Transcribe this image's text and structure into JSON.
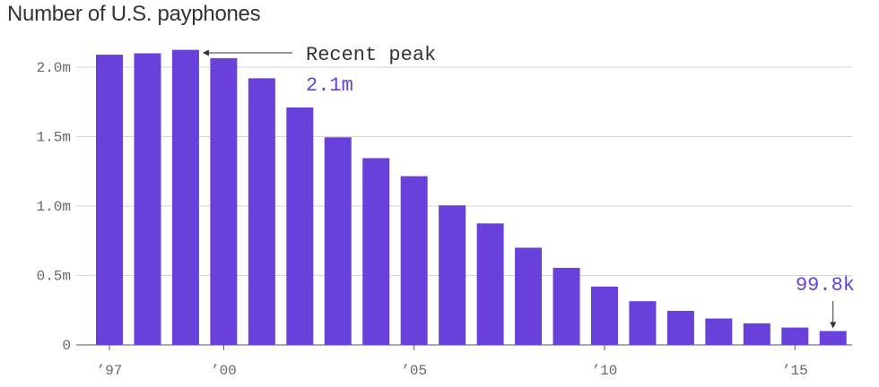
{
  "chart_data": {
    "type": "bar",
    "title": "Number of U.S. payphones",
    "xlabel": "",
    "ylabel": "",
    "categories": [
      "1997",
      "1998",
      "1999",
      "2000",
      "2001",
      "2002",
      "2003",
      "2004",
      "2005",
      "2006",
      "2007",
      "2008",
      "2009",
      "2010",
      "2011",
      "2012",
      "2013",
      "2014",
      "2015",
      "2016"
    ],
    "values": [
      2.09,
      2.1,
      2.125,
      2.065,
      1.92,
      1.71,
      1.495,
      1.345,
      1.215,
      1.005,
      0.875,
      0.7,
      0.555,
      0.42,
      0.315,
      0.245,
      0.19,
      0.155,
      0.125,
      0.0998
    ],
    "unit": "millions",
    "ylim": [
      0,
      2.2
    ],
    "yticks": [
      {
        "value": 0,
        "label": "0"
      },
      {
        "value": 0.5,
        "label": "0.5m"
      },
      {
        "value": 1.0,
        "label": "1.0m"
      },
      {
        "value": 1.5,
        "label": "1.5m"
      },
      {
        "value": 2.0,
        "label": "2.0m"
      }
    ],
    "xticks": [
      {
        "category": "1997",
        "label": "’97"
      },
      {
        "category": "2000",
        "label": "’00"
      },
      {
        "category": "2005",
        "label": "’05"
      },
      {
        "category": "2010",
        "label": "’10"
      },
      {
        "category": "2015",
        "label": "’15"
      }
    ],
    "grid": true,
    "legend": "none",
    "bar_color": "#6741d9",
    "annotations": [
      {
        "category": "1999",
        "label": "Recent peak",
        "value_label": "2.1m"
      },
      {
        "category": "2016",
        "value_label": "99.8k"
      }
    ]
  }
}
